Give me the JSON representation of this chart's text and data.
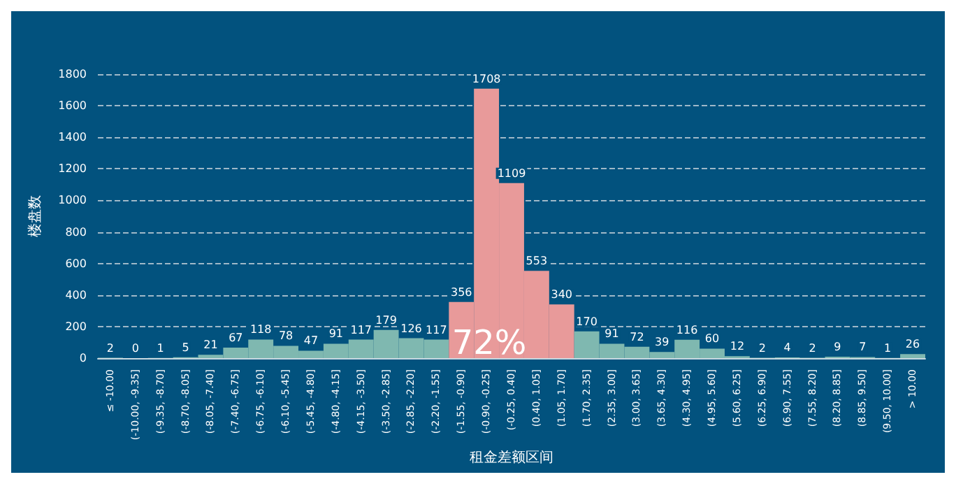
{
  "chart_data": {
    "type": "bar",
    "xlabel": "租金差额区间",
    "ylabel": "楼盘数",
    "categories": [
      "≤ -10.00",
      "(-10.00, -9.35]",
      "(-9.35, -8.70]",
      "(-8.70, -8.05]",
      "(-8.05, -7.40]",
      "(-7.40, -6.75]",
      "(-6.75, -6.10]",
      "(-6.10, -5.45]",
      "(-5.45, -4.80]",
      "(-4.80, -4.15]",
      "(-4.15, -3.50]",
      "(-3.50, -2.85]",
      "(-2.85, -2.20]",
      "(-2.20, -1.55]",
      "(-1.55, -0.90]",
      "(-0.90, -0.25]",
      "(-0.25, 0.40]",
      "(0.40, 1.05]",
      "(1.05, 1.70]",
      "(1.70, 2.35]",
      "(2.35, 3.00]",
      "(3.00, 3.65]",
      "(3.65, 4.30]",
      "(4.30, 4.95]",
      "(4.95, 5.60]",
      "(5.60, 6.25]",
      "(6.25, 6.90]",
      "(6.90, 7.55]",
      "(7.55, 8.20]",
      "(8.20, 8.85]",
      "(8.85, 9.50]",
      "(9.50, 10.00]",
      "> 10.00"
    ],
    "values": [
      2,
      0,
      1,
      5,
      21,
      67,
      118,
      78,
      47,
      91,
      117,
      179,
      126,
      117,
      356,
      1708,
      1109,
      553,
      340,
      170,
      91,
      72,
      39,
      116,
      60,
      12,
      2,
      4,
      2,
      9,
      7,
      1,
      26
    ],
    "colors": [
      "#7fb8b0",
      "#7fb8b0",
      "#7fb8b0",
      "#7fb8b0",
      "#7fb8b0",
      "#7fb8b0",
      "#7fb8b0",
      "#7fb8b0",
      "#7fb8b0",
      "#7fb8b0",
      "#7fb8b0",
      "#7fb8b0",
      "#7fb8b0",
      "#7fb8b0",
      "#e89a9a",
      "#e89a9a",
      "#e89a9a",
      "#e89a9a",
      "#e89a9a",
      "#7fb8b0",
      "#7fb8b0",
      "#7fb8b0",
      "#7fb8b0",
      "#7fb8b0",
      "#7fb8b0",
      "#7fb8b0",
      "#7fb8b0",
      "#7fb8b0",
      "#7fb8b0",
      "#7fb8b0",
      "#7fb8b0",
      "#7fb8b0",
      "#7fb8b0"
    ],
    "ylim": [
      0,
      1800
    ],
    "yticks": [
      0,
      200,
      400,
      600,
      800,
      1000,
      1200,
      1400,
      1600,
      1800
    ],
    "grid": "y",
    "data_labels": true,
    "annotations": [
      "72%"
    ]
  }
}
